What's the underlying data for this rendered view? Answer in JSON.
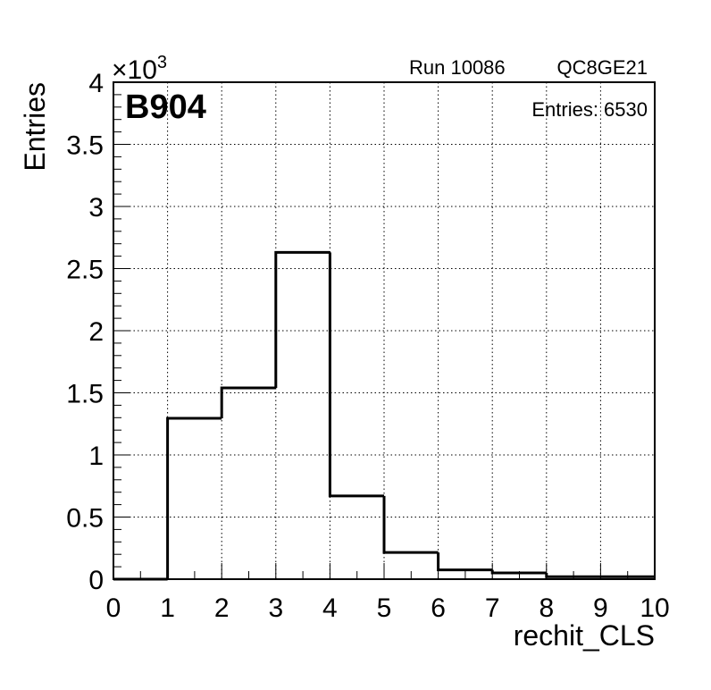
{
  "header": {
    "label": "B904",
    "run": "Run 10086",
    "setup": "QC8GE21",
    "entries": "Entries: 6530"
  },
  "chart_data": {
    "type": "bar",
    "subtype": "histogram-step",
    "xlabel": "rechit_CLS",
    "ylabel": "Entries",
    "y_multiplier_base": "×10",
    "y_multiplier_exp": "3",
    "xlim": [
      0,
      10
    ],
    "ylim": [
      0,
      4000
    ],
    "grid": true,
    "bin_edges": [
      0,
      1,
      2,
      3,
      4,
      5,
      6,
      7,
      8,
      9,
      10
    ],
    "values": [
      0,
      1295,
      1540,
      2630,
      670,
      215,
      75,
      50,
      20,
      20
    ],
    "x_ticks": [
      "0",
      "1",
      "2",
      "3",
      "4",
      "5",
      "6",
      "7",
      "8",
      "9",
      "10"
    ],
    "x_tick_values": [
      0,
      1,
      2,
      3,
      4,
      5,
      6,
      7,
      8,
      9,
      10
    ],
    "y_ticks": [
      "0",
      "0.5",
      "1",
      "1.5",
      "2",
      "2.5",
      "3",
      "3.5",
      "4"
    ],
    "y_tick_values": [
      0,
      500,
      1000,
      1500,
      2000,
      2500,
      3000,
      3500,
      4000
    ]
  }
}
